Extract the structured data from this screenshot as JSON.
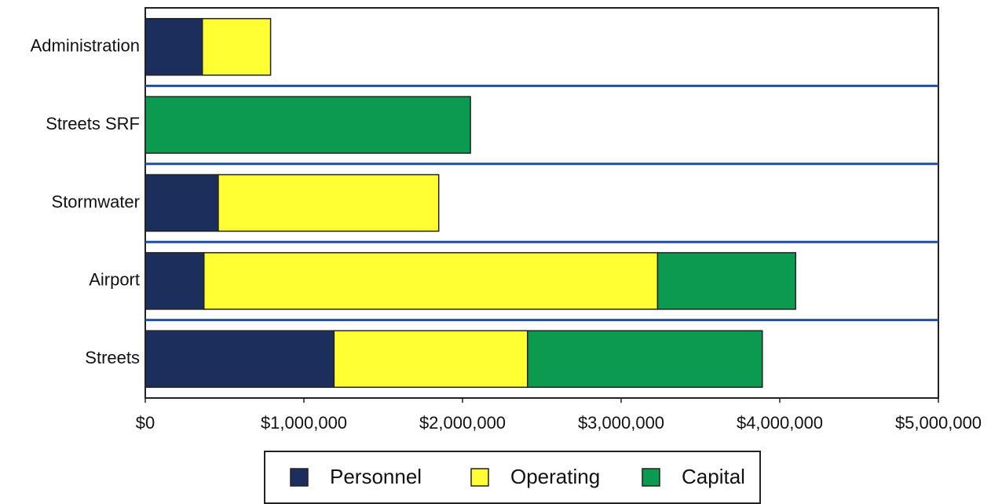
{
  "chart_data": {
    "type": "bar",
    "orientation": "horizontal",
    "stacked": true,
    "categories": [
      "Administration",
      "Streets SRF",
      "Stormwater",
      "Airport",
      "Streets"
    ],
    "series": [
      {
        "name": "Personnel",
        "color": "#1c2f5c",
        "values": [
          360000,
          null,
          460000,
          370000,
          1190000
        ]
      },
      {
        "name": "Operating",
        "color": "#ffff33",
        "values": [
          430000,
          null,
          1390000,
          2860000,
          1220000
        ]
      },
      {
        "name": "Capital",
        "color": "#0b9a50",
        "values": [
          null,
          2050000,
          null,
          870000,
          1480000
        ]
      }
    ],
    "xlim": [
      0,
      5000000
    ],
    "xticks": [
      {
        "value": 0,
        "label": "$0"
      },
      {
        "value": 1000000,
        "label": "$1,000,000"
      },
      {
        "value": 2000000,
        "label": "$2,000,000"
      },
      {
        "value": 3000000,
        "label": "$3,000,000"
      },
      {
        "value": 4000000,
        "label": "$4,000,000"
      },
      {
        "value": 5000000,
        "label": "$5,000,000"
      }
    ],
    "legend": "bottom"
  }
}
